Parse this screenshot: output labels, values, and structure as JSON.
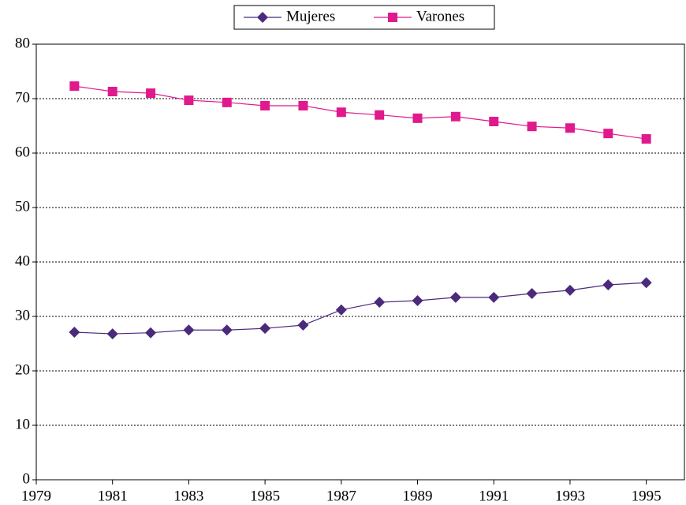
{
  "chart_data": {
    "type": "line",
    "x": [
      1980,
      1981,
      1982,
      1983,
      1984,
      1985,
      1986,
      1987,
      1988,
      1989,
      1990,
      1991,
      1992,
      1993,
      1994,
      1995
    ],
    "series": [
      {
        "name": "Mujeres",
        "color": "#4b2a7b",
        "marker": "diamond",
        "values": [
          27.1,
          26.8,
          27.0,
          27.5,
          27.5,
          27.8,
          28.4,
          31.2,
          32.6,
          32.9,
          33.5,
          33.5,
          34.2,
          34.8,
          35.8,
          36.2
        ]
      },
      {
        "name": "Varones",
        "color": "#e0198c",
        "marker": "square",
        "values": [
          72.3,
          71.3,
          71.0,
          69.7,
          69.3,
          68.7,
          68.7,
          67.5,
          67.0,
          66.4,
          66.7,
          65.8,
          64.9,
          64.6,
          63.6,
          62.6
        ]
      }
    ],
    "xlim": [
      1979,
      1996
    ],
    "xticks": [
      1979,
      1981,
      1983,
      1985,
      1987,
      1989,
      1991,
      1993,
      1995
    ],
    "ylim": [
      0,
      80
    ],
    "yticks": [
      0,
      10,
      20,
      30,
      40,
      50,
      60,
      70,
      80
    ],
    "grid": true,
    "legend": "top"
  }
}
